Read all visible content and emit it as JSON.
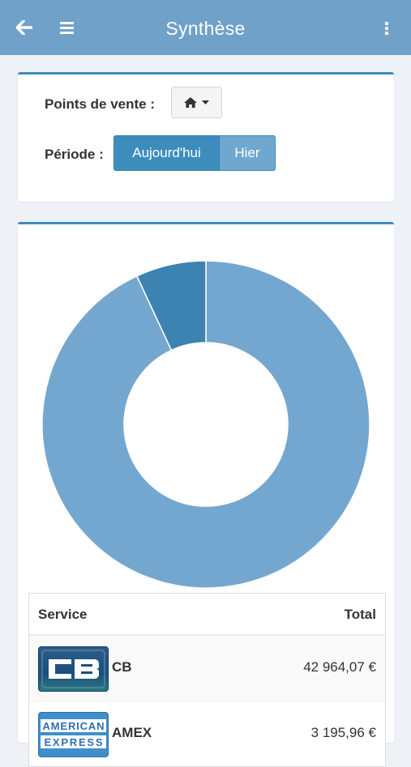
{
  "header": {
    "title": "Synthèse",
    "back_icon": "arrow-left-icon",
    "menu_icon": "hamburger-icon",
    "more_icon": "vertical-dots-icon",
    "color": "#6fa1c9"
  },
  "filters": {
    "points_label": "Points de vente :",
    "points_icon": "home-icon",
    "period_label": "Période :",
    "period_options": [
      "Aujourd'hui",
      "Hier"
    ],
    "period_selected": "Aujourd'hui",
    "accent": "#3c8dbc"
  },
  "chart_data": {
    "type": "pie",
    "variant": "donut",
    "categories": [
      "CB",
      "AMEX"
    ],
    "values": [
      42964.07,
      3195.96
    ],
    "colors": [
      "#74a7cf",
      "#3c83b1"
    ]
  },
  "table": {
    "headers": {
      "service": "Service",
      "total": "Total"
    },
    "rows": [
      {
        "logo": "cb-card-logo",
        "service": "CB",
        "total": "42 964,07 €"
      },
      {
        "logo": "american-express-logo",
        "service": "AMEX",
        "total": "3 195,96 €"
      }
    ]
  }
}
